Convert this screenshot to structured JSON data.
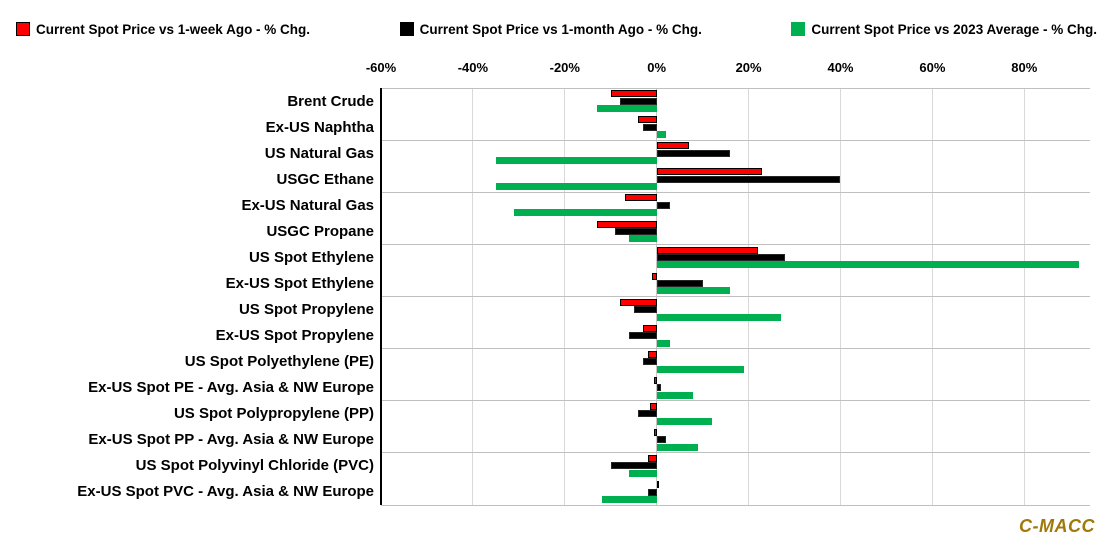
{
  "chart_data": {
    "type": "bar",
    "orientation": "horizontal",
    "title": "",
    "xlabel": "",
    "ylabel": "",
    "categories": [
      "Brent Crude",
      "Ex-US Naphtha",
      "US Natural Gas",
      "USGC Ethane",
      "Ex-US Natural Gas",
      "USGC Propane",
      "US Spot Ethylene",
      "Ex-US Spot Ethylene",
      "US Spot Propylene",
      "Ex-US Spot Propylene",
      "US Spot Polyethylene (PE)",
      "Ex-US Spot PE - Avg. Asia & NW Europe",
      "US Spot Polypropylene (PP)",
      "Ex-US Spot PP - Avg. Asia & NW Europe",
      "US Spot Polyvinyl Chloride (PVC)",
      "Ex-US Spot PVC - Avg. Asia & NW Europe"
    ],
    "series": [
      {
        "name": "Current Spot Price vs 1-week Ago - % Chg.",
        "color": "#ff0000",
        "values": [
          -10,
          -4,
          7,
          23,
          -7,
          -13,
          22,
          -1,
          -8,
          -3,
          -2,
          -0.5,
          -1.5,
          -0.5,
          -2,
          0.5
        ]
      },
      {
        "name": "Current Spot Price vs 1-month Ago - % Chg.",
        "color": "#000000",
        "values": [
          -8,
          -3,
          16,
          40,
          3,
          -9,
          28,
          10,
          -5,
          -6,
          -3,
          1,
          -4,
          2,
          -10,
          -2
        ]
      },
      {
        "name": "Current Spot Price vs 2023 Average - % Chg.",
        "color": "#00b050",
        "values": [
          -13,
          2,
          -35,
          -35,
          -31,
          -6,
          92,
          16,
          27,
          3,
          19,
          8,
          12,
          9,
          -6,
          -12
        ]
      }
    ],
    "axis": {
      "unit": "%",
      "min": -60,
      "max": 94.3,
      "ticks": [
        -60,
        -40,
        -20,
        0,
        20,
        40,
        60,
        80
      ],
      "tick_labels": [
        "-60%",
        "-40%",
        "-20%",
        "0%",
        "20%",
        "40%",
        "60%",
        "80%"
      ],
      "grid": "on",
      "horizontal_gridline_every_rows": 2
    },
    "legend_position": "top"
  },
  "footer": {
    "brand": "C-MACC",
    "brand_color": "#a0790a"
  }
}
